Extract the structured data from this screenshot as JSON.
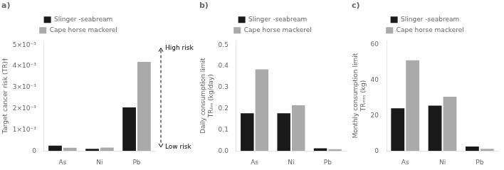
{
  "chart_data": [
    {
      "type": "bar",
      "title": "a)",
      "ylabel": "Target cancer risk (TR)†",
      "categories": [
        "As",
        "Ni",
        "Pb"
      ],
      "series": [
        {
          "name": "Slinger -seabream",
          "color": "#1a1a1a",
          "values": [
            0.00025,
            0.0001,
            0.00205
          ]
        },
        {
          "name": "Cape horse mackerel",
          "color": "#aaaaaa",
          "values": [
            0.00015,
            0.00016,
            0.0042
          ]
        }
      ],
      "ylim": [
        0,
        0.0052
      ],
      "yticks": [
        0,
        {
          "value": 0.001,
          "label": "1×10⁻³"
        },
        {
          "value": 0.002,
          "label": "2×10⁻³"
        },
        {
          "value": 0.003,
          "label": "3×10⁻³"
        },
        {
          "value": 0.004,
          "label": "4×10⁻³"
        },
        {
          "value": 0.005,
          "label": "5×10⁻³"
        }
      ],
      "annotations": [
        {
          "text": "High risk",
          "y": 0.00485
        },
        {
          "text": "Low risk",
          "y": 0.00018
        }
      ],
      "grid": false,
      "legend": "top"
    },
    {
      "type": "bar",
      "title": "b)",
      "ylabel": "Daily consumption limit\nTRₗᵢₘ (kg/day)",
      "categories": [
        "As",
        "Ni",
        "Pb"
      ],
      "series": [
        {
          "name": "Slinger -seabream",
          "color": "#1a1a1a",
          "values": [
            0.178,
            0.178,
            0.012
          ]
        },
        {
          "name": "Cape horse mackerel",
          "color": "#aaaaaa",
          "values": [
            0.385,
            0.215,
            0.008
          ]
        }
      ],
      "ylim": [
        0,
        0.52
      ],
      "yticks": [
        {
          "value": 0,
          "label": "0.0"
        },
        0.1,
        0.2,
        0.3,
        0.4,
        0.5
      ],
      "grid": false,
      "legend": "top"
    },
    {
      "type": "bar",
      "title": "c)",
      "ylabel": "Monthly consumption limit\nTRₘₘ (kg)",
      "categories": [
        "As",
        "Ni",
        "Pb"
      ],
      "series": [
        {
          "name": "Slinger -seabream",
          "color": "#1a1a1a",
          "values": [
            24.0,
            25.5,
            2.5
          ]
        },
        {
          "name": "Cape horse mackerel",
          "color": "#aaaaaa",
          "values": [
            51.0,
            30.5,
            1.2
          ]
        }
      ],
      "ylim": [
        0,
        62
      ],
      "yticks": [
        0,
        20,
        40,
        60
      ],
      "grid": false,
      "legend": "top"
    }
  ]
}
